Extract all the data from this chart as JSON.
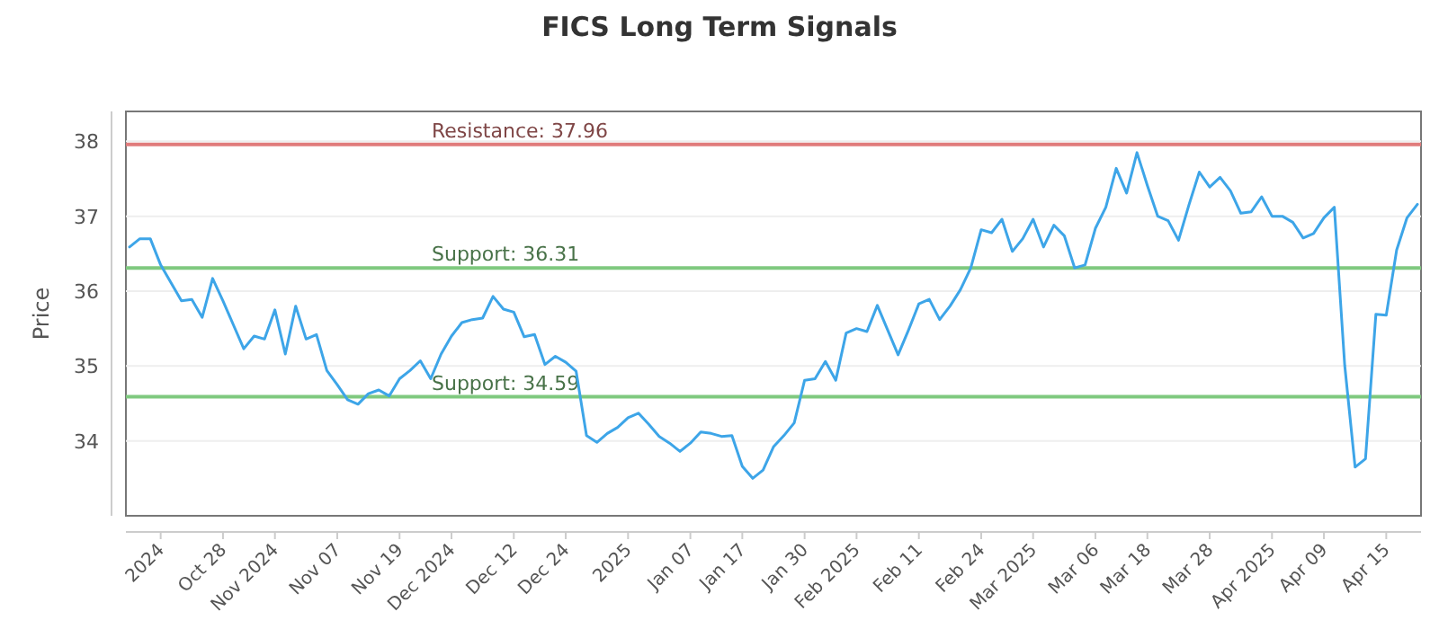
{
  "chart_data": {
    "type": "line",
    "title": "FICS Long Term Signals",
    "ylabel": "Price",
    "categories": [
      null,
      null,
      null,
      "2024",
      null,
      null,
      null,
      null,
      null,
      "Oct 28",
      null,
      null,
      null,
      null,
      "Nov 2024",
      null,
      null,
      null,
      null,
      null,
      "Nov 07",
      null,
      null,
      null,
      null,
      null,
      "Nov 19",
      null,
      null,
      null,
      null,
      "Dec 2024",
      null,
      null,
      null,
      null,
      null,
      "Dec 12",
      null,
      null,
      null,
      null,
      "Dec 24",
      null,
      null,
      null,
      null,
      null,
      "2025",
      null,
      null,
      null,
      null,
      null,
      "Jan 07",
      null,
      null,
      null,
      null,
      "Jan 17",
      null,
      null,
      null,
      null,
      null,
      "Jan 30",
      null,
      null,
      null,
      null,
      "Feb 2025",
      null,
      null,
      null,
      null,
      null,
      "Feb 11",
      null,
      null,
      null,
      null,
      null,
      "Feb 24",
      null,
      null,
      null,
      null,
      "Mar 2025",
      null,
      null,
      null,
      null,
      null,
      "Mar 06",
      null,
      null,
      null,
      null,
      "Mar 18",
      null,
      null,
      null,
      null,
      null,
      "Mar 28",
      null,
      null,
      null,
      null,
      null,
      "Apr 2025",
      null,
      null,
      null,
      null,
      "Apr 09",
      null,
      null,
      null,
      null,
      null,
      "Apr 15",
      null,
      null,
      null
    ],
    "series": [
      {
        "color": "#3da5e8",
        "values": [
          36.59,
          36.7,
          36.7,
          36.35,
          36.11,
          35.87,
          35.89,
          35.65,
          36.17,
          35.87,
          35.55,
          35.23,
          35.4,
          35.36,
          35.75,
          35.16,
          35.8,
          35.36,
          35.42,
          34.94,
          34.75,
          34.55,
          34.49,
          34.63,
          34.68,
          34.6,
          34.83,
          34.94,
          35.07,
          34.83,
          35.16,
          35.4,
          35.58,
          35.62,
          35.64,
          35.93,
          35.76,
          35.72,
          35.39,
          35.42,
          35.02,
          35.13,
          35.05,
          34.93,
          34.07,
          33.98,
          34.1,
          34.18,
          34.31,
          34.37,
          34.22,
          34.06,
          33.97,
          33.86,
          33.97,
          34.12,
          34.1,
          34.06,
          34.07,
          33.66,
          33.5,
          33.61,
          33.92,
          34.07,
          34.24,
          34.81,
          34.83,
          35.06,
          34.81,
          35.44,
          35.5,
          35.46,
          35.81,
          35.48,
          35.15,
          35.48,
          35.83,
          35.89,
          35.62,
          35.8,
          36.02,
          36.31,
          36.82,
          36.78,
          36.96,
          36.53,
          36.7,
          36.96,
          36.59,
          36.88,
          36.74,
          36.31,
          36.35,
          36.84,
          37.12,
          37.64,
          37.31,
          37.85,
          37.41,
          37.0,
          36.94,
          36.68,
          37.15,
          37.59,
          37.39,
          37.52,
          37.34,
          37.04,
          37.06,
          37.26,
          37.0,
          37.0,
          36.92,
          36.71,
          36.77,
          36.98,
          37.12,
          35.01,
          33.65,
          33.76,
          35.69,
          35.68,
          36.55,
          36.98,
          37.16
        ]
      }
    ],
    "ylim": [
      33,
      38.4
    ],
    "yticks": [
      34,
      35,
      36,
      37,
      38
    ],
    "grid": "y",
    "ref_lines": [
      {
        "axis": "y",
        "value": 37.96,
        "label": "Resistance: 37.96",
        "color": "#e07b7b"
      },
      {
        "axis": "y",
        "value": 36.31,
        "label": "Support: 36.31",
        "color": "#7fc97f"
      },
      {
        "axis": "y",
        "value": 34.59,
        "label": "Support: 34.59",
        "color": "#7fc97f"
      }
    ]
  }
}
